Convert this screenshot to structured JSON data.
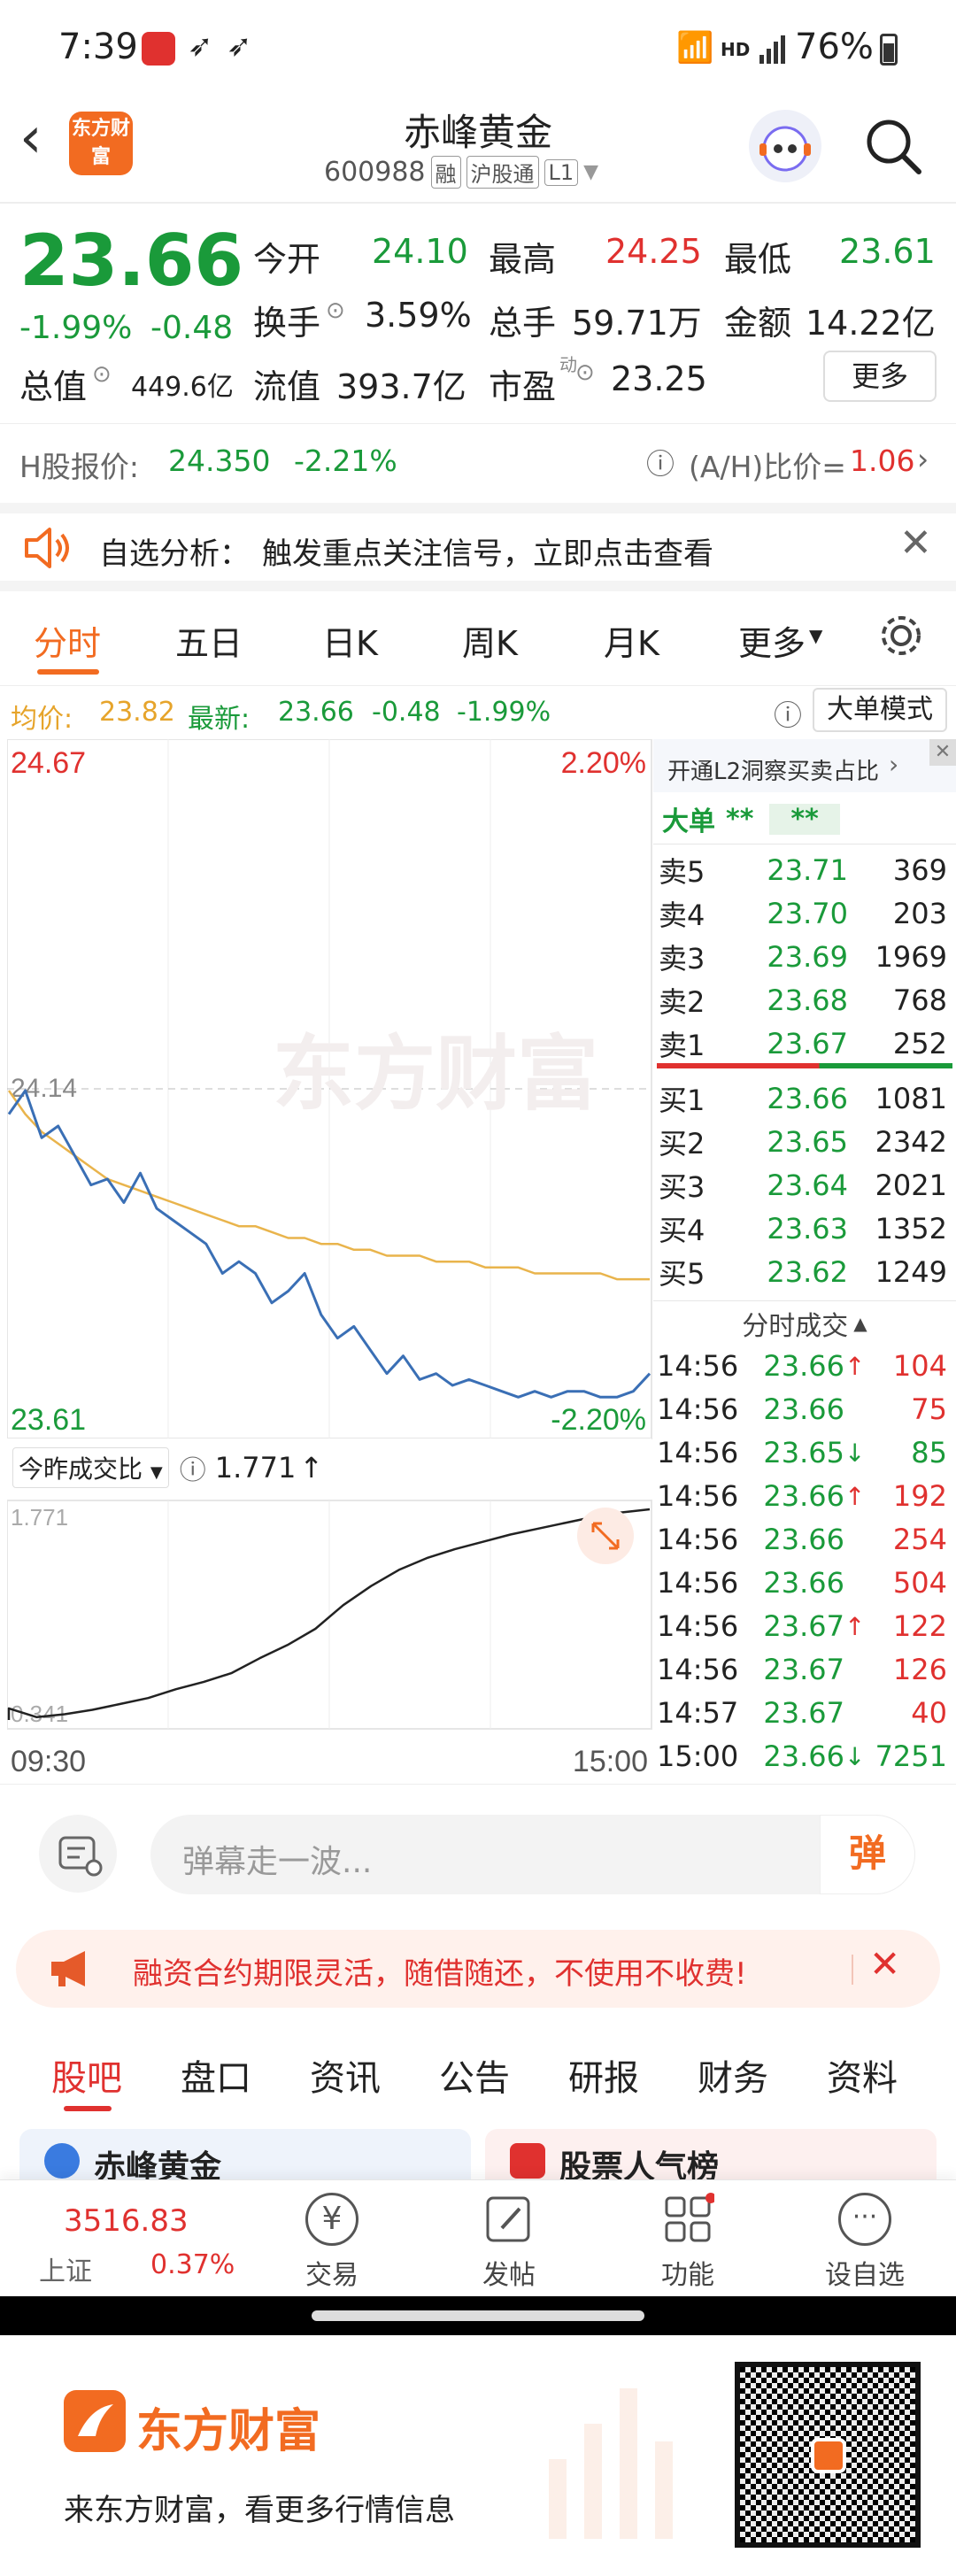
{
  "status": {
    "time": "7:39",
    "network": "HD",
    "battery": "76%"
  },
  "header": {
    "logo": "东方财富",
    "title": "赤峰黄金",
    "code": "600988",
    "tags": [
      "融",
      "沪股通",
      "L1"
    ]
  },
  "quote": {
    "price": "23.66",
    "change_pct": "-1.99%",
    "change": "-0.48",
    "open_label": "今开",
    "open": "24.10",
    "high_label": "最高",
    "high": "24.25",
    "low_label": "最低",
    "low": "23.61",
    "turnover_label": "换手",
    "turnover": "3.59%",
    "volume_label": "总手",
    "volume": "59.71万",
    "amount_label": "金额",
    "amount": "14.22亿",
    "mktcap_label": "总值",
    "mktcap": "449.6亿",
    "float_label": "流值",
    "float": "393.7亿",
    "pe_label": "市盈",
    "pe_sup": "动",
    "pe": "23.25",
    "more": "更多"
  },
  "hshare": {
    "label": "H股报价:",
    "price": "24.350",
    "pct": "-2.21%",
    "ah_label": "(A/H)比价=",
    "ah": "1.06"
  },
  "notice1": {
    "prefix": "自选分析：",
    "text": "触发重点关注信号，立即点击查看"
  },
  "tabs": [
    "分时",
    "五日",
    "日K",
    "周K",
    "月K",
    "更多"
  ],
  "avgbar": {
    "avg_label": "均价:",
    "avg": "23.82",
    "latest_label": "最新:",
    "latest": "23.66",
    "chg": "-0.48",
    "pct": "-1.99%",
    "mode": "大单模式"
  },
  "chart_data": {
    "type": "line",
    "y_top": "24.67",
    "y_top_pct": "2.20%",
    "y_bottom": "23.61",
    "y_bottom_pct": "-2.20%",
    "ref_label": "24.14",
    "watermark": "东方财富",
    "ylim": [
      23.61,
      24.67
    ],
    "price_series": [
      24.1,
      24.14,
      24.06,
      24.08,
      24.03,
      23.98,
      23.99,
      23.95,
      24.0,
      23.94,
      23.92,
      23.9,
      23.88,
      23.83,
      23.85,
      23.83,
      23.78,
      23.8,
      23.83,
      23.76,
      23.72,
      23.74,
      23.7,
      23.66,
      23.69,
      23.65,
      23.66,
      23.64,
      23.65,
      23.64,
      23.63,
      23.62,
      23.63,
      23.62,
      23.63,
      23.63,
      23.62,
      23.62,
      23.63,
      23.66
    ],
    "avg_series": [
      24.14,
      24.1,
      24.07,
      24.05,
      24.03,
      24.01,
      23.99,
      23.98,
      23.97,
      23.96,
      23.95,
      23.94,
      23.93,
      23.92,
      23.91,
      23.91,
      23.9,
      23.89,
      23.89,
      23.88,
      23.88,
      23.87,
      23.87,
      23.86,
      23.86,
      23.86,
      23.85,
      23.85,
      23.85,
      23.84,
      23.84,
      23.84,
      23.83,
      23.83,
      23.83,
      23.83,
      23.83,
      23.82,
      23.82,
      23.82
    ],
    "sub": {
      "label": "今昨成交比",
      "value": "1.771",
      "max": "1.771",
      "min": "0.341",
      "ylim": [
        0.341,
        1.771
      ],
      "series": [
        0.42,
        0.36,
        0.38,
        0.41,
        0.45,
        0.49,
        0.55,
        0.6,
        0.66,
        0.76,
        0.85,
        0.96,
        1.12,
        1.25,
        1.36,
        1.44,
        1.5,
        1.55,
        1.6,
        1.64,
        1.68,
        1.72,
        1.75,
        1.771
      ]
    },
    "x_start": "09:30",
    "x_end": "15:00"
  },
  "orderbook": {
    "banner": "开通L2洞察买卖占比",
    "big_order": "大单",
    "stars": "**",
    "asks": [
      {
        "label": "卖5",
        "price": "23.71",
        "vol": "369"
      },
      {
        "label": "卖4",
        "price": "23.70",
        "vol": "203"
      },
      {
        "label": "卖3",
        "price": "23.69",
        "vol": "1969"
      },
      {
        "label": "卖2",
        "price": "23.68",
        "vol": "768"
      },
      {
        "label": "卖1",
        "price": "23.67",
        "vol": "252"
      }
    ],
    "bids": [
      {
        "label": "买1",
        "price": "23.66",
        "vol": "1081"
      },
      {
        "label": "买2",
        "price": "23.65",
        "vol": "2342"
      },
      {
        "label": "买3",
        "price": "23.64",
        "vol": "2021"
      },
      {
        "label": "买4",
        "price": "23.63",
        "vol": "1352"
      },
      {
        "label": "买5",
        "price": "23.62",
        "vol": "1249"
      }
    ],
    "ticks_title": "分时成交",
    "ticks": [
      {
        "t": "14:56",
        "p": "23.66",
        "arrow": "↑",
        "v": "104"
      },
      {
        "t": "14:56",
        "p": "23.66",
        "arrow": "",
        "v": "75"
      },
      {
        "t": "14:56",
        "p": "23.65",
        "arrow": "↓",
        "v": "85"
      },
      {
        "t": "14:56",
        "p": "23.66",
        "arrow": "↑",
        "v": "192"
      },
      {
        "t": "14:56",
        "p": "23.66",
        "arrow": "",
        "v": "254"
      },
      {
        "t": "14:56",
        "p": "23.66",
        "arrow": "",
        "v": "504"
      },
      {
        "t": "14:56",
        "p": "23.67",
        "arrow": "↑",
        "v": "122"
      },
      {
        "t": "14:56",
        "p": "23.67",
        "arrow": "",
        "v": "126"
      },
      {
        "t": "14:57",
        "p": "23.67",
        "arrow": "",
        "v": "40"
      },
      {
        "t": "15:00",
        "p": "23.66",
        "arrow": "↓",
        "v": "7251"
      }
    ]
  },
  "danmu": {
    "placeholder": "弹幕走一波...",
    "btn": "弹"
  },
  "notice2": {
    "text": "融资合约期限灵活，随借随还，不使用不收费!"
  },
  "bottabs": [
    "股吧",
    "盘口",
    "资讯",
    "公告",
    "研报",
    "财务",
    "资料"
  ],
  "peek": {
    "left": "赤峰黄金",
    "right": "股票人气榜"
  },
  "botnav": {
    "index_value": "3516.83",
    "index_name": "上证",
    "index_pct": "0.37%",
    "items": [
      "交易",
      "发帖",
      "功能",
      "设自选"
    ]
  },
  "promo": {
    "brand": "东方财富",
    "text": "来东方财富，看更多行情信息"
  }
}
